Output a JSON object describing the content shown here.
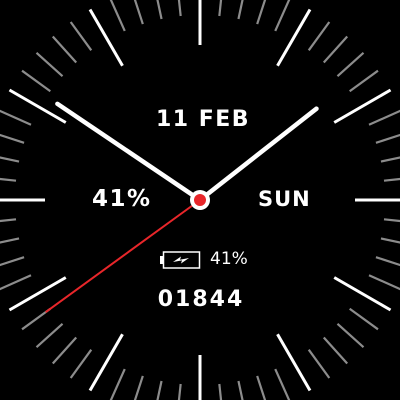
{
  "watch_face": {
    "date": "11 FEB",
    "weekday": "SUN",
    "battery_percent": "41%",
    "battery_small_text": "41%",
    "steps": "01844",
    "time": {
      "hour": 10,
      "minute": 8,
      "second": 39
    },
    "icons": {
      "battery": "battery-charging-icon",
      "center": "center-pin-icon"
    },
    "colors": {
      "background": "#000000",
      "hands": "#ffffff",
      "second_hand": "#e8262a",
      "center_pin": "#e8262a",
      "major_tick": "#ffffff",
      "minor_tick": "#8c8c8c"
    }
  }
}
